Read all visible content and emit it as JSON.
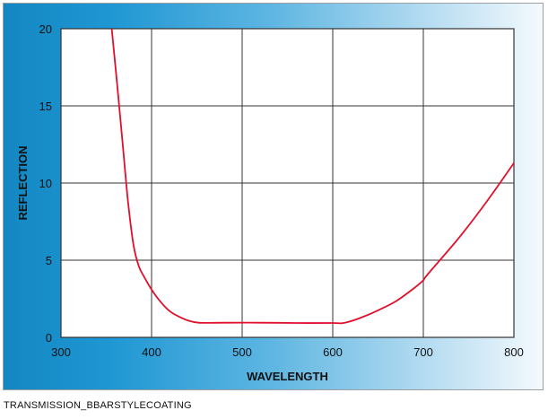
{
  "caption": "TRANSMISSION_BBARSTYLECOATING",
  "colors": {
    "curve": "#e0102b",
    "grid": "#333333",
    "plot_background": "#ffffff",
    "panel_gradient_start": "#1387c2",
    "panel_gradient_end": "#f4f9fd"
  },
  "chart_data": {
    "type": "line",
    "title": "",
    "xlabel": "WAVELENGTH",
    "ylabel": "REFLECTION",
    "xlim": [
      300,
      800
    ],
    "ylim": [
      0,
      20
    ],
    "xticks": [
      "300",
      "400",
      "500",
      "600",
      "700",
      "800"
    ],
    "yticks": [
      "0",
      "5",
      "10",
      "15",
      "20"
    ],
    "grid": true,
    "legend": "none",
    "series": [
      {
        "x": [
          356,
          362,
          368,
          374,
          380,
          386,
          392,
          400,
          410,
          420,
          430,
          440,
          452,
          480,
          520,
          560,
          600,
          612,
          630,
          650,
          670,
          690,
          700,
          705,
          740,
          770,
          800
        ],
        "y": [
          20,
          16.4,
          12.6,
          8.8,
          6.0,
          4.6,
          3.9,
          3.1,
          2.3,
          1.7,
          1.35,
          1.1,
          0.95,
          0.95,
          0.95,
          0.93,
          0.93,
          0.93,
          1.25,
          1.75,
          2.35,
          3.2,
          3.7,
          4.1,
          6.5,
          8.8,
          11.3
        ]
      }
    ]
  }
}
